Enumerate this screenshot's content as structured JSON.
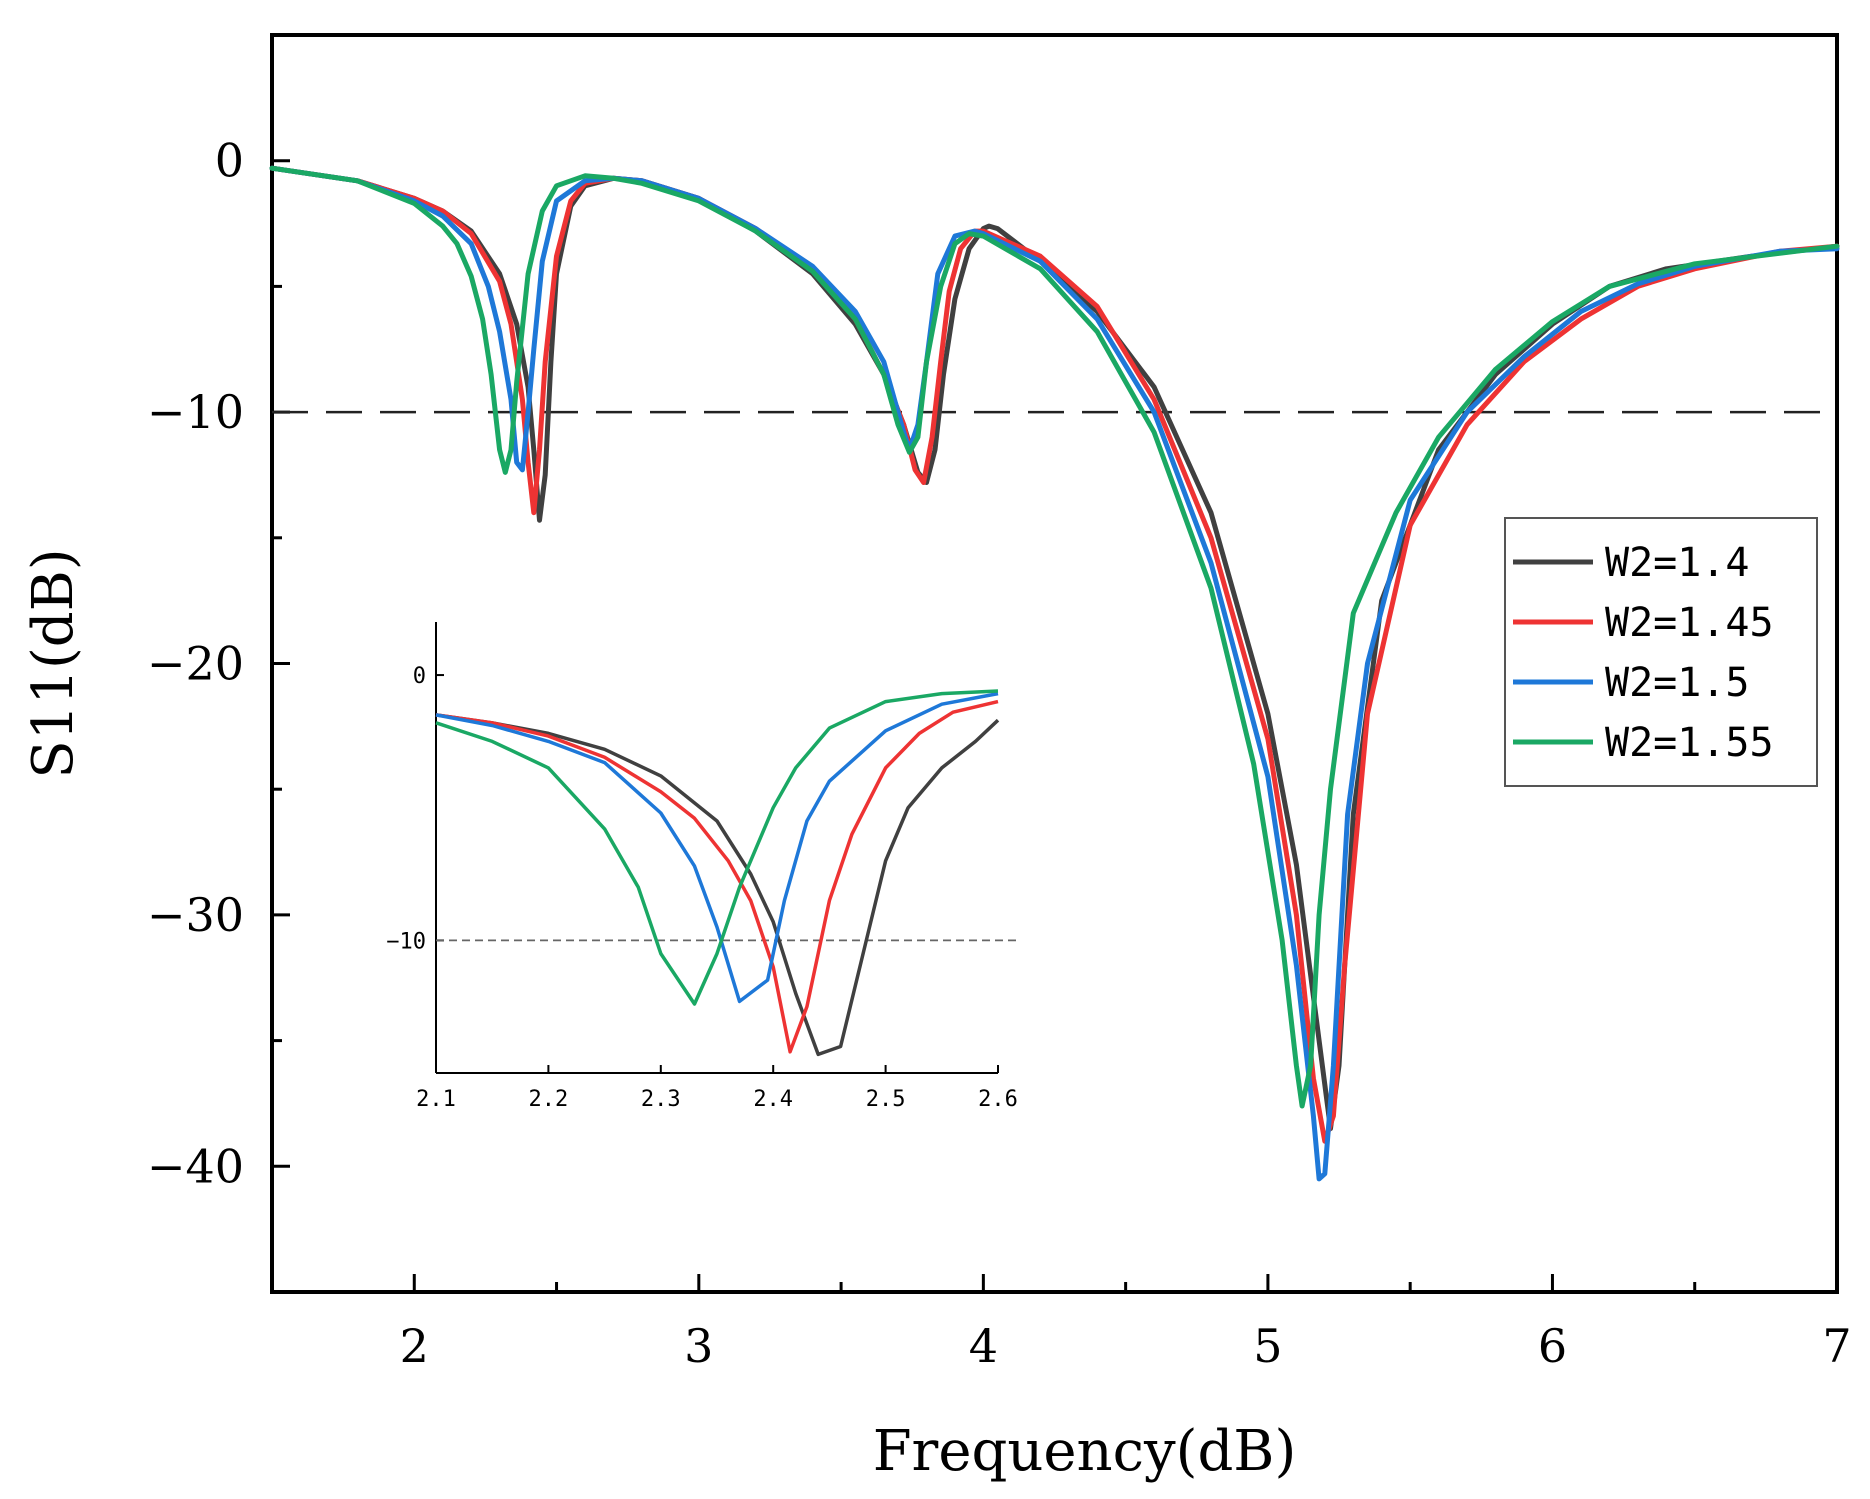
{
  "chart_data": [
    {
      "type": "line",
      "name": "main",
      "title": "",
      "xlabel": "Frequency(dB)",
      "ylabel": "S11(dB)",
      "xlim": [
        1.5,
        7
      ],
      "ylim": [
        -45,
        5
      ],
      "xticks": [
        2,
        3,
        4,
        5,
        6,
        7
      ],
      "xtick_labels": [
        "2",
        "3",
        "4",
        "5",
        "6",
        "7"
      ],
      "yticks": [
        0,
        -10,
        -20,
        -30,
        -40
      ],
      "ytick_labels": [
        "0",
        "−10",
        "−20",
        "−30",
        "−40"
      ],
      "reference_line": -10,
      "legend_position": "right",
      "series": [
        {
          "name": "W2=1.4",
          "color": "#404040",
          "x": [
            1.5,
            1.8,
            2.0,
            2.1,
            2.2,
            2.3,
            2.36,
            2.4,
            2.42,
            2.44,
            2.46,
            2.48,
            2.5,
            2.55,
            2.6,
            2.7,
            2.8,
            3.0,
            3.2,
            3.4,
            3.55,
            3.65,
            3.72,
            3.77,
            3.8,
            3.83,
            3.86,
            3.9,
            3.95,
            4.0,
            4.02,
            4.05,
            4.2,
            4.4,
            4.6,
            4.8,
            5.0,
            5.1,
            5.18,
            5.22,
            5.25,
            5.3,
            5.4,
            5.6,
            5.8,
            6.0,
            6.2,
            6.4,
            6.7,
            7.0
          ],
          "y": [
            -0.3,
            -0.8,
            -1.5,
            -2.0,
            -2.8,
            -4.5,
            -6.5,
            -9.0,
            -11.5,
            -14.3,
            -12.5,
            -8.0,
            -4.5,
            -1.8,
            -1.0,
            -0.7,
            -0.8,
            -1.5,
            -2.8,
            -4.5,
            -6.5,
            -8.5,
            -10.5,
            -12.4,
            -12.8,
            -11.5,
            -8.5,
            -5.5,
            -3.5,
            -2.7,
            -2.6,
            -2.7,
            -4.0,
            -6.0,
            -9.0,
            -14.0,
            -22.0,
            -28.0,
            -35.0,
            -38.5,
            -36.0,
            -26.0,
            -17.5,
            -11.5,
            -8.5,
            -6.5,
            -5.0,
            -4.3,
            -3.8,
            -3.4
          ]
        },
        {
          "name": "W2=1.45",
          "color": "#ee3333",
          "x": [
            1.5,
            1.8,
            2.0,
            2.1,
            2.2,
            2.3,
            2.34,
            2.38,
            2.4,
            2.42,
            2.44,
            2.46,
            2.5,
            2.55,
            2.6,
            2.7,
            2.8,
            3.0,
            3.2,
            3.4,
            3.55,
            3.65,
            3.72,
            3.76,
            3.79,
            3.82,
            3.85,
            3.88,
            3.92,
            3.97,
            4.0,
            4.2,
            4.4,
            4.6,
            4.8,
            5.0,
            5.1,
            5.16,
            5.2,
            5.23,
            5.27,
            5.35,
            5.5,
            5.7,
            5.9,
            6.1,
            6.3,
            6.5,
            6.8,
            7.0
          ],
          "y": [
            -0.3,
            -0.8,
            -1.5,
            -2.0,
            -2.9,
            -4.8,
            -6.5,
            -9.5,
            -12.0,
            -14.0,
            -11.5,
            -8.0,
            -3.8,
            -1.6,
            -0.9,
            -0.7,
            -0.8,
            -1.5,
            -2.7,
            -4.3,
            -6.3,
            -8.5,
            -10.5,
            -12.3,
            -12.8,
            -11.0,
            -8.0,
            -5.2,
            -3.5,
            -2.8,
            -2.8,
            -3.8,
            -5.8,
            -9.5,
            -15.0,
            -23.0,
            -30.0,
            -36.5,
            -39.0,
            -38.0,
            -32.0,
            -22.0,
            -14.5,
            -10.5,
            -8.0,
            -6.3,
            -5.0,
            -4.3,
            -3.6,
            -3.4
          ]
        },
        {
          "name": "W2=1.5",
          "color": "#1e78d8",
          "x": [
            1.5,
            1.8,
            2.0,
            2.1,
            2.2,
            2.26,
            2.3,
            2.34,
            2.36,
            2.38,
            2.4,
            2.42,
            2.45,
            2.5,
            2.6,
            2.7,
            2.8,
            3.0,
            3.2,
            3.4,
            3.55,
            3.65,
            3.72,
            3.74,
            3.77,
            3.8,
            3.84,
            3.9,
            3.97,
            4.0,
            4.2,
            4.4,
            4.6,
            4.8,
            5.0,
            5.1,
            5.16,
            5.18,
            5.2,
            5.23,
            5.28,
            5.35,
            5.5,
            5.7,
            5.9,
            6.1,
            6.3,
            6.5,
            6.8,
            7.0
          ],
          "y": [
            -0.3,
            -0.8,
            -1.6,
            -2.2,
            -3.3,
            -5.0,
            -6.8,
            -9.5,
            -12.0,
            -12.3,
            -10.0,
            -7.5,
            -4.0,
            -1.6,
            -0.8,
            -0.7,
            -0.8,
            -1.5,
            -2.7,
            -4.2,
            -6.0,
            -8.0,
            -10.8,
            -11.5,
            -10.5,
            -8.0,
            -4.5,
            -3.0,
            -2.8,
            -2.9,
            -4.0,
            -6.3,
            -10.0,
            -16.0,
            -24.5,
            -32.0,
            -38.0,
            -40.5,
            -40.3,
            -36.0,
            -26.0,
            -20.0,
            -13.5,
            -10.0,
            -7.8,
            -6.0,
            -4.9,
            -4.2,
            -3.6,
            -3.5
          ]
        },
        {
          "name": "W2=1.55",
          "color": "#1aa864",
          "x": [
            1.5,
            1.8,
            2.0,
            2.1,
            2.15,
            2.2,
            2.24,
            2.27,
            2.3,
            2.32,
            2.34,
            2.36,
            2.4,
            2.45,
            2.5,
            2.6,
            2.7,
            2.8,
            3.0,
            3.2,
            3.4,
            3.55,
            3.65,
            3.7,
            3.74,
            3.77,
            3.8,
            3.85,
            3.9,
            3.95,
            4.0,
            4.2,
            4.4,
            4.6,
            4.8,
            4.95,
            5.05,
            5.1,
            5.12,
            5.15,
            5.18,
            5.22,
            5.3,
            5.45,
            5.6,
            5.8,
            6.0,
            6.2,
            6.5,
            7.0
          ],
          "y": [
            -0.3,
            -0.8,
            -1.7,
            -2.6,
            -3.3,
            -4.6,
            -6.3,
            -8.5,
            -11.5,
            -12.4,
            -11.5,
            -8.8,
            -4.5,
            -2.0,
            -1.0,
            -0.6,
            -0.7,
            -0.9,
            -1.6,
            -2.8,
            -4.4,
            -6.3,
            -8.5,
            -10.5,
            -11.6,
            -11.0,
            -8.0,
            -5.0,
            -3.3,
            -2.9,
            -3.0,
            -4.3,
            -6.8,
            -10.8,
            -17.0,
            -24.0,
            -31.0,
            -36.0,
            -37.6,
            -36.0,
            -30.0,
            -25.0,
            -18.0,
            -14.0,
            -11.0,
            -8.3,
            -6.4,
            -5.0,
            -4.1,
            -3.4
          ]
        }
      ]
    },
    {
      "type": "line",
      "name": "inset",
      "title": "",
      "xlabel": "",
      "ylabel": "",
      "xlim": [
        2.1,
        2.6
      ],
      "ylim": [
        -15,
        2
      ],
      "xticks": [
        2.1,
        2.2,
        2.3,
        2.4,
        2.5,
        2.6
      ],
      "xtick_labels": [
        "2.1",
        "2.2",
        "2.3",
        "2.4",
        "2.5",
        "2.6"
      ],
      "yticks": [
        0,
        -10
      ],
      "ytick_labels": [
        "0",
        "−10"
      ],
      "reference_line": -10,
      "series": [
        {
          "name": "W2=1.4",
          "color": "#404040",
          "x": [
            2.1,
            2.15,
            2.2,
            2.25,
            2.3,
            2.35,
            2.38,
            2.4,
            2.42,
            2.44,
            2.46,
            2.48,
            2.5,
            2.52,
            2.55,
            2.58,
            2.6
          ],
          "y": [
            -1.5,
            -1.8,
            -2.2,
            -2.8,
            -3.8,
            -5.5,
            -7.5,
            -9.3,
            -12.0,
            -14.3,
            -14.0,
            -10.5,
            -7.0,
            -5.0,
            -3.5,
            -2.5,
            -1.7
          ]
        },
        {
          "name": "W2=1.45",
          "color": "#ee3333",
          "x": [
            2.1,
            2.15,
            2.2,
            2.25,
            2.3,
            2.33,
            2.36,
            2.38,
            2.4,
            2.415,
            2.43,
            2.45,
            2.47,
            2.5,
            2.53,
            2.56,
            2.6
          ],
          "y": [
            -1.5,
            -1.8,
            -2.3,
            -3.1,
            -4.4,
            -5.4,
            -7.0,
            -8.5,
            -11.0,
            -14.2,
            -12.5,
            -8.5,
            -6.0,
            -3.5,
            -2.2,
            -1.4,
            -1.0
          ]
        },
        {
          "name": "W2=1.5",
          "color": "#1e78d8",
          "x": [
            2.1,
            2.15,
            2.2,
            2.25,
            2.3,
            2.33,
            2.35,
            2.37,
            2.395,
            2.41,
            2.43,
            2.45,
            2.5,
            2.55,
            2.6
          ],
          "y": [
            -1.5,
            -1.9,
            -2.5,
            -3.3,
            -5.2,
            -7.2,
            -9.5,
            -12.3,
            -11.5,
            -8.5,
            -5.5,
            -4.0,
            -2.1,
            -1.1,
            -0.7
          ]
        },
        {
          "name": "W2=1.55",
          "color": "#1aa864",
          "x": [
            2.1,
            2.15,
            2.2,
            2.25,
            2.28,
            2.3,
            2.33,
            2.35,
            2.37,
            2.4,
            2.42,
            2.45,
            2.5,
            2.55,
            2.6
          ],
          "y": [
            -1.8,
            -2.5,
            -3.5,
            -5.8,
            -8.0,
            -10.5,
            -12.4,
            -10.5,
            -8.0,
            -5.0,
            -3.5,
            -2.0,
            -1.0,
            -0.7,
            -0.6
          ]
        }
      ]
    }
  ]
}
